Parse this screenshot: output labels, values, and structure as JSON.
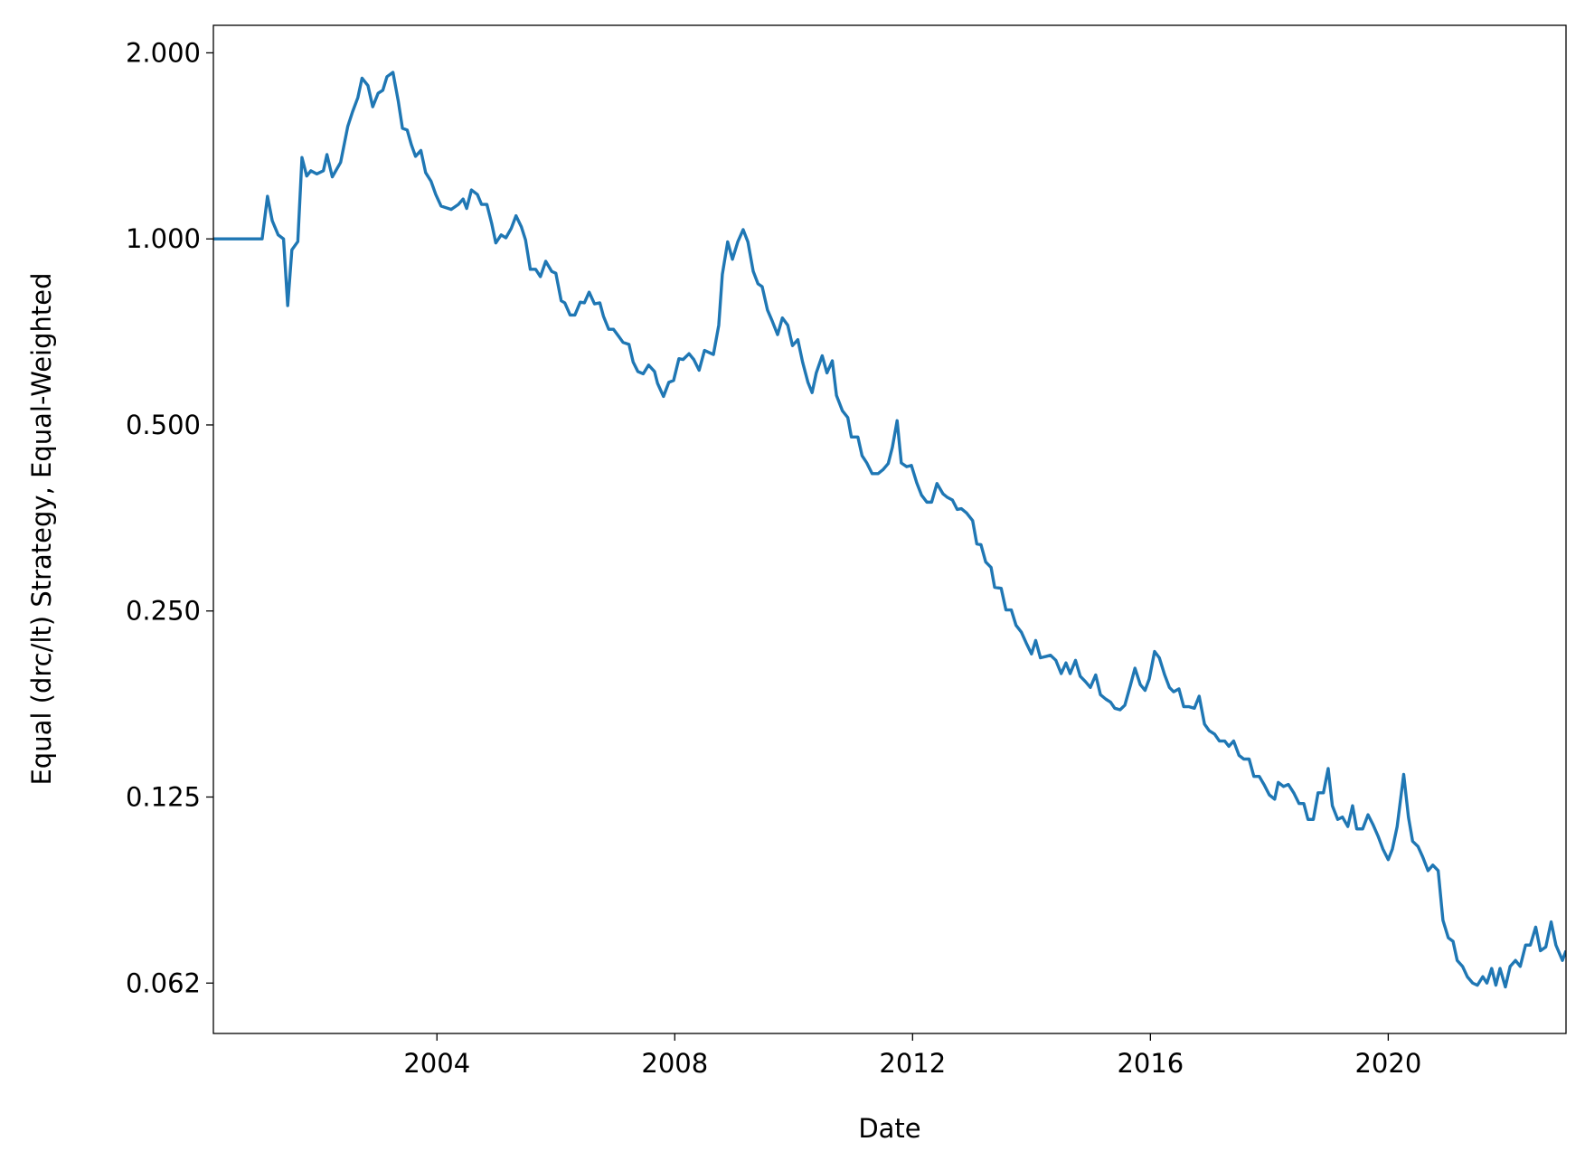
{
  "chart_data": {
    "type": "line",
    "x_label": "Date",
    "y_label": "Equal (drc/lt) Strategy, Equal-Weighted",
    "color": "#1f77b4",
    "yscale": "log",
    "xlim": [
      2000.24,
      2022.99
    ],
    "ylim": [
      0.0518,
      2.216
    ],
    "xticks": [
      2004,
      2008,
      2012,
      2016,
      2020
    ],
    "yticks": [
      {
        "value": 2,
        "label": "2.000"
      },
      {
        "value": 1,
        "label": "1.000"
      },
      {
        "value": 0.5,
        "label": "0.500"
      },
      {
        "value": 0.25,
        "label": "0.250"
      },
      {
        "value": 0.125,
        "label": "0.125"
      },
      {
        "value": 0.0625,
        "label": "0.062"
      }
    ],
    "x": [
      2000.24,
      2001.06,
      2001.15,
      2001.23,
      2001.33,
      2001.42,
      2001.49,
      2001.56,
      2001.66,
      2001.73,
      2001.81,
      2001.88,
      2001.98,
      2002.09,
      2002.15,
      2002.24,
      2002.38,
      2002.5,
      2002.58,
      2002.67,
      2002.74,
      2002.84,
      2002.92,
      2003.01,
      2003.09,
      2003.16,
      2003.26,
      2003.35,
      2003.42,
      2003.5,
      2003.57,
      2003.64,
      2003.73,
      2003.81,
      2003.9,
      2003.98,
      2004.07,
      2004.24,
      2004.36,
      2004.44,
      2004.5,
      2004.58,
      2004.68,
      2004.75,
      2004.84,
      2004.92,
      2004.99,
      2005.08,
      2005.16,
      2005.25,
      2005.33,
      2005.42,
      2005.49,
      2005.57,
      2005.66,
      2005.74,
      2005.83,
      2005.93,
      2006.0,
      2006.09,
      2006.15,
      2006.24,
      2006.32,
      2006.41,
      2006.48,
      2006.56,
      2006.65,
      2006.74,
      2006.8,
      2006.89,
      2006.97,
      2007.06,
      2007.13,
      2007.23,
      2007.3,
      2007.38,
      2007.47,
      2007.56,
      2007.66,
      2007.71,
      2007.81,
      2007.9,
      2007.98,
      2008.07,
      2008.14,
      2008.24,
      2008.32,
      2008.41,
      2008.5,
      2008.65,
      2008.74,
      2008.8,
      2008.89,
      2008.97,
      2009.06,
      2009.15,
      2009.23,
      2009.32,
      2009.4,
      2009.47,
      2009.56,
      2009.64,
      2009.73,
      2009.81,
      2009.9,
      2009.98,
      2010.07,
      2010.15,
      2010.24,
      2010.31,
      2010.38,
      2010.48,
      2010.56,
      2010.65,
      2010.72,
      2010.82,
      2010.91,
      2010.97,
      2011.08,
      2011.15,
      2011.23,
      2011.32,
      2011.42,
      2011.5,
      2011.59,
      2011.66,
      2011.74,
      2011.81,
      2011.9,
      2011.98,
      2012.07,
      2012.15,
      2012.24,
      2012.32,
      2012.41,
      2012.51,
      2012.58,
      2012.67,
      2012.75,
      2012.82,
      2012.91,
      2013.01,
      2013.08,
      2013.15,
      2013.23,
      2013.32,
      2013.38,
      2013.49,
      2013.57,
      2013.66,
      2013.74,
      2013.83,
      2013.91,
      2014.0,
      2014.07,
      2014.15,
      2014.24,
      2014.32,
      2014.41,
      2014.5,
      2014.58,
      2014.65,
      2014.74,
      2014.82,
      2014.91,
      2014.99,
      2015.08,
      2015.16,
      2015.25,
      2015.33,
      2015.4,
      2015.49,
      2015.57,
      2015.66,
      2015.74,
      2015.83,
      2015.91,
      2015.98,
      2016.07,
      2016.15,
      2016.24,
      2016.32,
      2016.39,
      2016.48,
      2016.56,
      2016.65,
      2016.74,
      2016.82,
      2016.91,
      2016.99,
      2017.08,
      2017.16,
      2017.25,
      2017.32,
      2017.4,
      2017.49,
      2017.57,
      2017.66,
      2017.74,
      2017.83,
      2017.91,
      2018.0,
      2018.09,
      2018.15,
      2018.24,
      2018.32,
      2018.41,
      2018.5,
      2018.58,
      2018.65,
      2018.74,
      2018.82,
      2018.91,
      2018.99,
      2019.06,
      2019.15,
      2019.23,
      2019.32,
      2019.4,
      2019.47,
      2019.57,
      2019.66,
      2019.74,
      2019.83,
      2019.91,
      2020.0,
      2020.07,
      2020.15,
      2020.26,
      2020.34,
      2020.41,
      2020.5,
      2020.58,
      2020.67,
      2020.75,
      2020.84,
      2020.92,
      2021.01,
      2021.09,
      2021.16,
      2021.25,
      2021.33,
      2021.42,
      2021.5,
      2021.59,
      2021.66,
      2021.74,
      2021.81,
      2021.88,
      2021.97,
      2022.05,
      2022.14,
      2022.22,
      2022.31,
      2022.39,
      2022.48,
      2022.56,
      2022.65,
      2022.74,
      2022.82,
      2022.93,
      2022.99
    ],
    "values": [
      1.0,
      1.0,
      1.172,
      1.07,
      1.015,
      1.0,
      0.78,
      0.96,
      0.99,
      1.354,
      1.264,
      1.289,
      1.274,
      1.289,
      1.369,
      1.26,
      1.33,
      1.52,
      1.605,
      1.693,
      1.82,
      1.77,
      1.636,
      1.72,
      1.74,
      1.83,
      1.86,
      1.67,
      1.51,
      1.5,
      1.42,
      1.36,
      1.39,
      1.28,
      1.24,
      1.18,
      1.13,
      1.116,
      1.137,
      1.16,
      1.12,
      1.2,
      1.18,
      1.137,
      1.137,
      1.06,
      0.985,
      1.015,
      1.004,
      1.04,
      1.09,
      1.046,
      0.996,
      0.893,
      0.893,
      0.869,
      0.92,
      0.886,
      0.88,
      0.794,
      0.788,
      0.753,
      0.753,
      0.79,
      0.788,
      0.82,
      0.785,
      0.788,
      0.75,
      0.714,
      0.714,
      0.695,
      0.68,
      0.675,
      0.632,
      0.61,
      0.605,
      0.625,
      0.61,
      0.584,
      0.556,
      0.586,
      0.59,
      0.64,
      0.638,
      0.652,
      0.638,
      0.613,
      0.66,
      0.65,
      0.725,
      0.876,
      0.989,
      0.927,
      0.989,
      1.035,
      0.989,
      0.886,
      0.846,
      0.837,
      0.767,
      0.736,
      0.7,
      0.745,
      0.725,
      0.672,
      0.687,
      0.632,
      0.586,
      0.564,
      0.607,
      0.647,
      0.607,
      0.635,
      0.558,
      0.527,
      0.514,
      0.478,
      0.478,
      0.446,
      0.434,
      0.417,
      0.417,
      0.423,
      0.433,
      0.46,
      0.508,
      0.434,
      0.428,
      0.43,
      0.403,
      0.385,
      0.375,
      0.375,
      0.402,
      0.387,
      0.382,
      0.378,
      0.365,
      0.366,
      0.36,
      0.35,
      0.321,
      0.32,
      0.3,
      0.294,
      0.273,
      0.272,
      0.251,
      0.251,
      0.237,
      0.231,
      0.222,
      0.213,
      0.224,
      0.21,
      0.211,
      0.212,
      0.208,
      0.198,
      0.206,
      0.198,
      0.208,
      0.196,
      0.192,
      0.188,
      0.197,
      0.183,
      0.18,
      0.178,
      0.174,
      0.173,
      0.176,
      0.189,
      0.202,
      0.19,
      0.186,
      0.194,
      0.215,
      0.21,
      0.197,
      0.188,
      0.185,
      0.187,
      0.175,
      0.175,
      0.174,
      0.182,
      0.164,
      0.16,
      0.158,
      0.154,
      0.154,
      0.151,
      0.154,
      0.146,
      0.144,
      0.144,
      0.135,
      0.135,
      0.131,
      0.126,
      0.124,
      0.132,
      0.13,
      0.131,
      0.127,
      0.122,
      0.122,
      0.115,
      0.115,
      0.127,
      0.127,
      0.139,
      0.121,
      0.115,
      0.116,
      0.112,
      0.121,
      0.111,
      0.111,
      0.117,
      0.113,
      0.108,
      0.103,
      0.099,
      0.103,
      0.112,
      0.136,
      0.116,
      0.106,
      0.104,
      0.1,
      0.095,
      0.097,
      0.095,
      0.079,
      0.074,
      0.073,
      0.068,
      0.0665,
      0.064,
      0.0625,
      0.062,
      0.064,
      0.0625,
      0.066,
      0.062,
      0.066,
      0.0616,
      0.0665,
      0.068,
      0.0665,
      0.072,
      0.072,
      0.077,
      0.0705,
      0.0715,
      0.0785,
      0.072,
      0.068,
      0.0705
    ]
  }
}
